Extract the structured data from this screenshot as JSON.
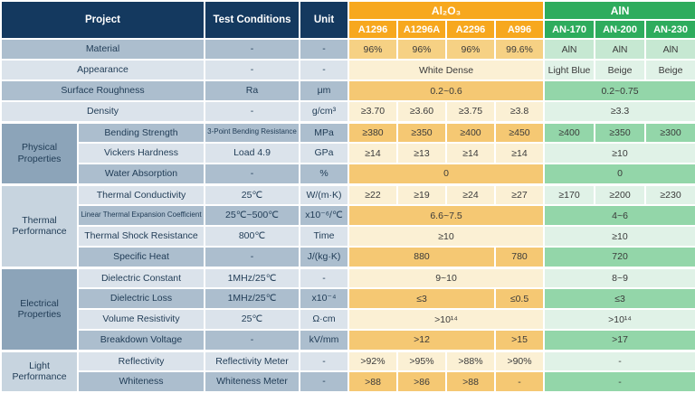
{
  "colors": {
    "header_navy": "#14395F",
    "alumina_orange": "#F7A81E",
    "aln_green": "#2EAC5D",
    "gold_dark": "#F5C873",
    "gold_light": "#FBF0D4",
    "gold_mid": "#F6D184",
    "green_dark": "#93D6A9",
    "green_light": "#E0F2E7",
    "green_mid": "#C6E8D2",
    "label_dark": "#ACBECE",
    "label_light": "#DBE3EB",
    "group_dark": "#8CA4B9",
    "group_light": "#C7D4DF",
    "label_text": "#1F3B55",
    "data_text": "#3A3A3A"
  },
  "header": {
    "project": "Project",
    "test_conditions": "Test Conditions",
    "unit": "Unit",
    "material_groups": [
      {
        "label": "Al₂O₃",
        "columns": [
          "A1296",
          "A1296A",
          "A2296",
          "A996"
        ]
      },
      {
        "label": "AlN",
        "columns": [
          "AN-170",
          "AN-200",
          "AN-230"
        ]
      }
    ]
  },
  "sections": [
    {
      "group": null,
      "rows": [
        {
          "label": "Material",
          "condition": "-",
          "unit": "-",
          "al2o3": [
            {
              "v": "96%"
            },
            {
              "v": "96%"
            },
            {
              "v": "96%"
            },
            {
              "v": "99.6%"
            }
          ],
          "aln": [
            {
              "v": "AlN"
            },
            {
              "v": "AlN"
            },
            {
              "v": "AlN"
            }
          ]
        },
        {
          "label": "Appearance",
          "condition": "-",
          "unit": "-",
          "al2o3": [
            {
              "v": "White Dense",
              "span": 4
            }
          ],
          "aln": [
            {
              "v": "Light Blue"
            },
            {
              "v": "Beige"
            },
            {
              "v": "Beige"
            }
          ]
        },
        {
          "label": "Surface Roughness",
          "condition": "Ra",
          "unit": "μm",
          "al2o3": [
            {
              "v": "0.2~0.6",
              "span": 4
            }
          ],
          "aln": [
            {
              "v": "0.2~0.75",
              "span": 3
            }
          ]
        },
        {
          "label": "Density",
          "condition": "-",
          "unit": "g/cm³",
          "al2o3": [
            {
              "v": "≥3.70"
            },
            {
              "v": "≥3.60"
            },
            {
              "v": "≥3.75"
            },
            {
              "v": "≥3.8"
            }
          ],
          "aln": [
            {
              "v": "≥3.3",
              "span": 3
            }
          ]
        }
      ]
    },
    {
      "group": "Physical Properties",
      "rows": [
        {
          "label": "Bending Strength",
          "condition": "3-Point Bending Resistance",
          "unit": "MPa",
          "al2o3": [
            {
              "v": "≥380"
            },
            {
              "v": "≥350"
            },
            {
              "v": "≥400"
            },
            {
              "v": "≥450"
            }
          ],
          "aln": [
            {
              "v": "≥400"
            },
            {
              "v": "≥350"
            },
            {
              "v": "≥300"
            }
          ]
        },
        {
          "label": "Vickers Hardness",
          "condition": "Load 4.9",
          "unit": "GPa",
          "al2o3": [
            {
              "v": "≥14"
            },
            {
              "v": "≥13"
            },
            {
              "v": "≥14"
            },
            {
              "v": "≥14"
            }
          ],
          "aln": [
            {
              "v": "≥10",
              "span": 3
            }
          ]
        },
        {
          "label": "Water Absorption",
          "condition": "-",
          "unit": "%",
          "al2o3": [
            {
              "v": "0",
              "span": 4
            }
          ],
          "aln": [
            {
              "v": "0",
              "span": 3
            }
          ]
        }
      ]
    },
    {
      "group": "Thermal Performance",
      "rows": [
        {
          "label": "Thermal Conductivity",
          "condition": "25℃",
          "unit": "W/(m·K)",
          "al2o3": [
            {
              "v": "≥22"
            },
            {
              "v": "≥19"
            },
            {
              "v": "≥24"
            },
            {
              "v": "≥27"
            }
          ],
          "aln": [
            {
              "v": "≥170"
            },
            {
              "v": "≥200"
            },
            {
              "v": "≥230"
            }
          ]
        },
        {
          "label": "Linear Thermal Expansion Coefficient",
          "condition": "25℃~500℃",
          "unit": "x10⁻⁶/℃",
          "al2o3": [
            {
              "v": "6.6~7.5",
              "span": 4
            }
          ],
          "aln": [
            {
              "v": "4~6",
              "span": 3
            }
          ]
        },
        {
          "label": "Thermal Shock Resistance",
          "condition": "800℃",
          "unit": "Time",
          "al2o3": [
            {
              "v": "≥10",
              "span": 4
            }
          ],
          "aln": [
            {
              "v": "≥10",
              "span": 3
            }
          ]
        },
        {
          "label": "Specific Heat",
          "condition": "-",
          "unit": "J/(kg·K)",
          "al2o3": [
            {
              "v": "880",
              "span": 3
            },
            {
              "v": "780"
            }
          ],
          "aln": [
            {
              "v": "720",
              "span": 3
            }
          ]
        }
      ]
    },
    {
      "group": "Electrical Properties",
      "rows": [
        {
          "label": "Dielectric Constant",
          "condition": "1MHz/25℃",
          "unit": "-",
          "al2o3": [
            {
              "v": "9~10",
              "span": 4
            }
          ],
          "aln": [
            {
              "v": "8~9",
              "span": 3
            }
          ]
        },
        {
          "label": "Dielectric Loss",
          "condition": "1MHz/25℃",
          "unit": "x10⁻⁴",
          "al2o3": [
            {
              "v": "≤3",
              "span": 3
            },
            {
              "v": "≤0.5"
            }
          ],
          "aln": [
            {
              "v": "≤3",
              "span": 3
            }
          ]
        },
        {
          "label": "Volume Resistivity",
          "condition": "25℃",
          "unit": "Ω·cm",
          "al2o3": [
            {
              "v": ">10¹⁴",
              "span": 4
            }
          ],
          "aln": [
            {
              "v": ">10¹⁴",
              "span": 3
            }
          ]
        },
        {
          "label": "Breakdown Voltage",
          "condition": "-",
          "unit": "kV/mm",
          "al2o3": [
            {
              "v": ">12",
              "span": 3
            },
            {
              "v": ">15"
            }
          ],
          "aln": [
            {
              "v": ">17",
              "span": 3
            }
          ]
        }
      ]
    },
    {
      "group": "Light Performance",
      "rows": [
        {
          "label": "Reflectivity",
          "condition": "Reflectivity Meter",
          "unit": "-",
          "al2o3": [
            {
              "v": ">92%"
            },
            {
              "v": ">95%"
            },
            {
              "v": ">88%"
            },
            {
              "v": ">90%"
            }
          ],
          "aln": [
            {
              "v": "-",
              "span": 3
            }
          ]
        },
        {
          "label": "Whiteness",
          "condition": "Whiteness Meter",
          "unit": "-",
          "al2o3": [
            {
              "v": ">88"
            },
            {
              "v": ">86"
            },
            {
              "v": ">88"
            },
            {
              "v": "-"
            }
          ],
          "aln": [
            {
              "v": "-",
              "span": 3
            }
          ]
        }
      ]
    }
  ]
}
